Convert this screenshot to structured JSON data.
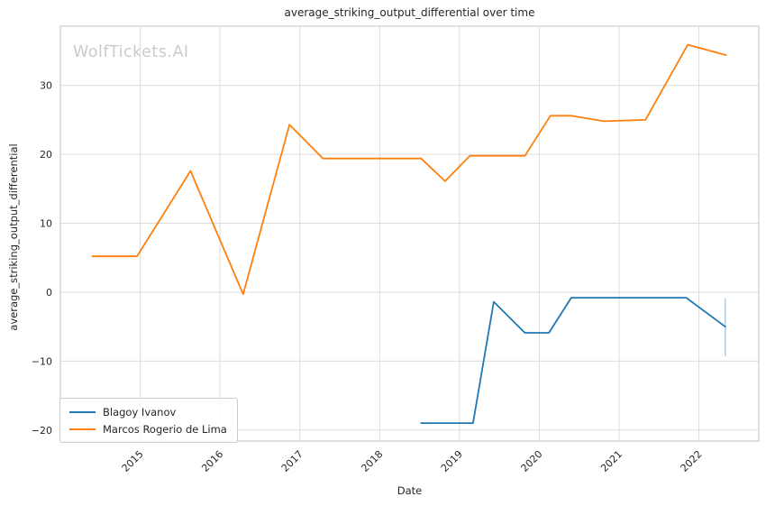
{
  "watermark": "WolfTickets.AI",
  "chart_data": {
    "type": "line",
    "title": "average_striking_output_differential over time",
    "xlabel": "Date",
    "ylabel": "average_striking_output_differential",
    "xlim": [
      2014.0,
      2022.75
    ],
    "ylim": [
      -21.6,
      38.6
    ],
    "grid": true,
    "grid_color": "#dcdcdc",
    "spine_color": "#cccccc",
    "text_color": "#262626",
    "legend_position": "lower left",
    "x_ticks": [
      {
        "value": 2015,
        "label": "2015"
      },
      {
        "value": 2016,
        "label": "2016"
      },
      {
        "value": 2017,
        "label": "2017"
      },
      {
        "value": 2018,
        "label": "2018"
      },
      {
        "value": 2019,
        "label": "2019"
      },
      {
        "value": 2020,
        "label": "2020"
      },
      {
        "value": 2021,
        "label": "2021"
      },
      {
        "value": 2022,
        "label": "2022"
      }
    ],
    "y_ticks": [
      {
        "value": -20,
        "label": "−20"
      },
      {
        "value": -10,
        "label": "−10"
      },
      {
        "value": 0,
        "label": "0"
      },
      {
        "value": 10,
        "label": "10"
      },
      {
        "value": 20,
        "label": "20"
      },
      {
        "value": 30,
        "label": "30"
      }
    ],
    "series": [
      {
        "name": "Blagoy Ivanov",
        "color": "#1f77b4",
        "x": [
          2018.52,
          2019.17,
          2019.43,
          2019.82,
          2020.12,
          2020.4,
          2021.84,
          2022.33
        ],
        "y": [
          -19.0,
          -19.0,
          -1.4,
          -5.9,
          -5.9,
          -0.8,
          -0.8,
          -5.0
        ],
        "error_bar": {
          "x": 2022.33,
          "y_low": -9.3,
          "y_high": -0.9,
          "color": "#aecde4"
        }
      },
      {
        "name": "Marcos Rogerio de Lima",
        "color": "#ff7f0e",
        "x": [
          2014.4,
          2014.96,
          2015.63,
          2016.29,
          2016.87,
          2017.29,
          2018.52,
          2018.82,
          2019.13,
          2019.82,
          2020.14,
          2020.4,
          2020.81,
          2021.33,
          2021.86,
          2022.34
        ],
        "y": [
          5.2,
          5.2,
          17.6,
          -0.3,
          24.3,
          19.4,
          19.4,
          16.1,
          19.8,
          19.8,
          25.6,
          25.6,
          24.8,
          25.0,
          35.9,
          34.4
        ]
      }
    ]
  }
}
